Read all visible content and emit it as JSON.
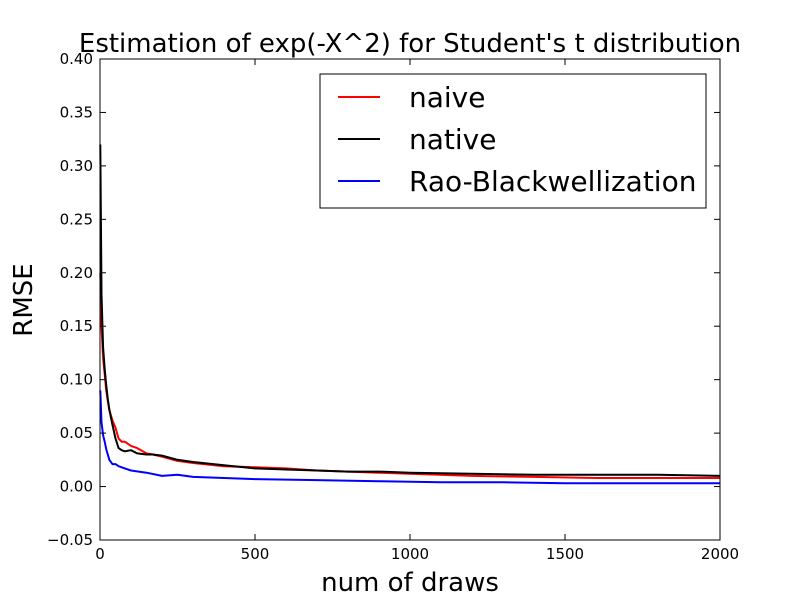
{
  "chart_data": {
    "type": "line",
    "title": "Estimation of exp(-X^2) for Student's t distribution",
    "xlabel": "num of draws",
    "ylabel": "RMSE",
    "xlim": [
      0,
      2000
    ],
    "ylim": [
      -0.05,
      0.4
    ],
    "xticks": [
      0,
      500,
      1000,
      1500,
      2000
    ],
    "yticks": [
      -0.05,
      0.0,
      0.05,
      0.1,
      0.15,
      0.2,
      0.25,
      0.3,
      0.35,
      0.4
    ],
    "xtick_labels": [
      "0",
      "500",
      "1000",
      "1500",
      "2000"
    ],
    "ytick_labels": [
      "−0.05",
      "0.00",
      "0.05",
      "0.10",
      "0.15",
      "0.20",
      "0.25",
      "0.30",
      "0.35",
      "0.40"
    ],
    "grid": false,
    "legend_position": "top-right",
    "series": [
      {
        "name": "naive",
        "color": "#ff0000",
        "x": [
          1,
          5,
          10,
          15,
          20,
          25,
          30,
          40,
          50,
          60,
          70,
          80,
          100,
          120,
          150,
          170,
          200,
          250,
          300,
          400,
          500,
          600,
          700,
          800,
          900,
          1000,
          1200,
          1400,
          1600,
          1800,
          2000
        ],
        "y": [
          0.2,
          0.15,
          0.12,
          0.105,
          0.09,
          0.08,
          0.072,
          0.062,
          0.055,
          0.045,
          0.042,
          0.042,
          0.038,
          0.036,
          0.031,
          0.03,
          0.028,
          0.024,
          0.022,
          0.019,
          0.018,
          0.017,
          0.015,
          0.014,
          0.013,
          0.012,
          0.01,
          0.009,
          0.008,
          0.008,
          0.008
        ]
      },
      {
        "name": "native",
        "color": "#000000",
        "x": [
          1,
          5,
          10,
          15,
          20,
          25,
          30,
          40,
          50,
          60,
          70,
          80,
          100,
          120,
          150,
          170,
          200,
          250,
          300,
          400,
          500,
          600,
          700,
          800,
          900,
          1000,
          1200,
          1400,
          1600,
          1800,
          2000
        ],
        "y": [
          0.32,
          0.18,
          0.13,
          0.11,
          0.095,
          0.082,
          0.072,
          0.058,
          0.045,
          0.036,
          0.034,
          0.033,
          0.034,
          0.031,
          0.03,
          0.03,
          0.029,
          0.025,
          0.023,
          0.02,
          0.017,
          0.016,
          0.015,
          0.014,
          0.014,
          0.013,
          0.012,
          0.011,
          0.011,
          0.011,
          0.01
        ]
      },
      {
        "name": "Rao-Blackwellization",
        "color": "#0000ff",
        "x": [
          1,
          5,
          10,
          15,
          20,
          25,
          30,
          40,
          50,
          60,
          80,
          100,
          150,
          200,
          250,
          300,
          400,
          500,
          700,
          900,
          1100,
          1300,
          1500,
          1700,
          2000
        ],
        "y": [
          0.09,
          0.06,
          0.048,
          0.042,
          0.035,
          0.03,
          0.025,
          0.021,
          0.021,
          0.019,
          0.017,
          0.015,
          0.013,
          0.01,
          0.011,
          0.009,
          0.008,
          0.007,
          0.006,
          0.005,
          0.004,
          0.004,
          0.003,
          0.003,
          0.003
        ]
      }
    ]
  }
}
